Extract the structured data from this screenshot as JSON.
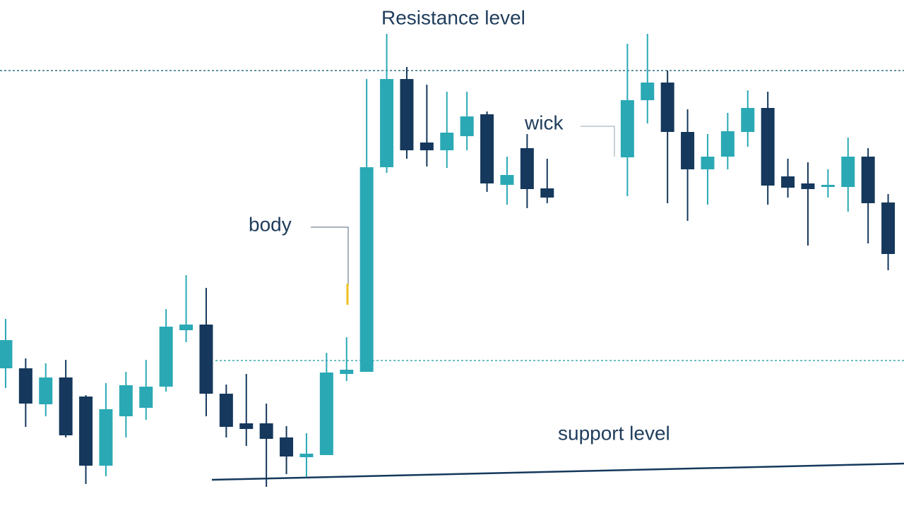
{
  "chart_data": {
    "type": "candlestick",
    "annotations": {
      "resistance": "Resistance level",
      "body": "body",
      "wick": "wick",
      "support": "support level"
    },
    "x": [
      0,
      1,
      2,
      3,
      4,
      5,
      6,
      7,
      8,
      9,
      10,
      11,
      12,
      13,
      14,
      15,
      16,
      17,
      18,
      19,
      20,
      21,
      22,
      23,
      24,
      25,
      26,
      27,
      31,
      32,
      33,
      34,
      35,
      36,
      37,
      38,
      39,
      40,
      41,
      42,
      43,
      44
    ],
    "open": [
      198,
      198,
      147,
      185,
      158,
      60,
      130,
      142,
      172,
      252,
      260,
      162,
      120,
      120,
      100,
      72,
      75,
      190,
      193,
      483,
      608,
      518,
      507,
      527,
      558,
      458,
      510,
      453,
      497,
      578,
      603,
      533,
      480,
      498,
      533,
      567,
      470,
      460,
      455,
      455,
      498,
      433
    ],
    "high": [
      268,
      212,
      205,
      210,
      160,
      177,
      193,
      210,
      282,
      330,
      312,
      175,
      190,
      148,
      116,
      106,
      220,
      242,
      608,
      672,
      625,
      600,
      590,
      590,
      562,
      498,
      530,
      495,
      658,
      672,
      620,
      565,
      530,
      560,
      592,
      590,
      495,
      490,
      480,
      525,
      510,
      445
    ],
    "low": [
      170,
      115,
      130,
      100,
      34,
      45,
      100,
      125,
      165,
      235,
      130,
      100,
      88,
      30,
      48,
      44,
      75,
      180,
      193,
      475,
      495,
      484,
      482,
      507,
      448,
      430,
      425,
      432,
      442,
      545,
      432,
      407,
      430,
      480,
      512,
      430,
      440,
      372,
      440,
      420,
      375,
      337
    ],
    "close": [
      238,
      148,
      185,
      103,
      60,
      140,
      174,
      172,
      257,
      260,
      162,
      115,
      112,
      98,
      73,
      77,
      192,
      196,
      483,
      608,
      507,
      507,
      532,
      555,
      460,
      472,
      452,
      440,
      578,
      603,
      533,
      480,
      498,
      534,
      567,
      457,
      454,
      452,
      458,
      498,
      432,
      360
    ],
    "up_color": "#2aa9b5",
    "down_color": "#15385c",
    "levels": {
      "resistance": 620,
      "middle": 209,
      "support": [
        40,
        63
      ]
    },
    "xlim": [
      -0.28,
      44.79
    ],
    "ylim": [
      0,
      720
    ]
  }
}
